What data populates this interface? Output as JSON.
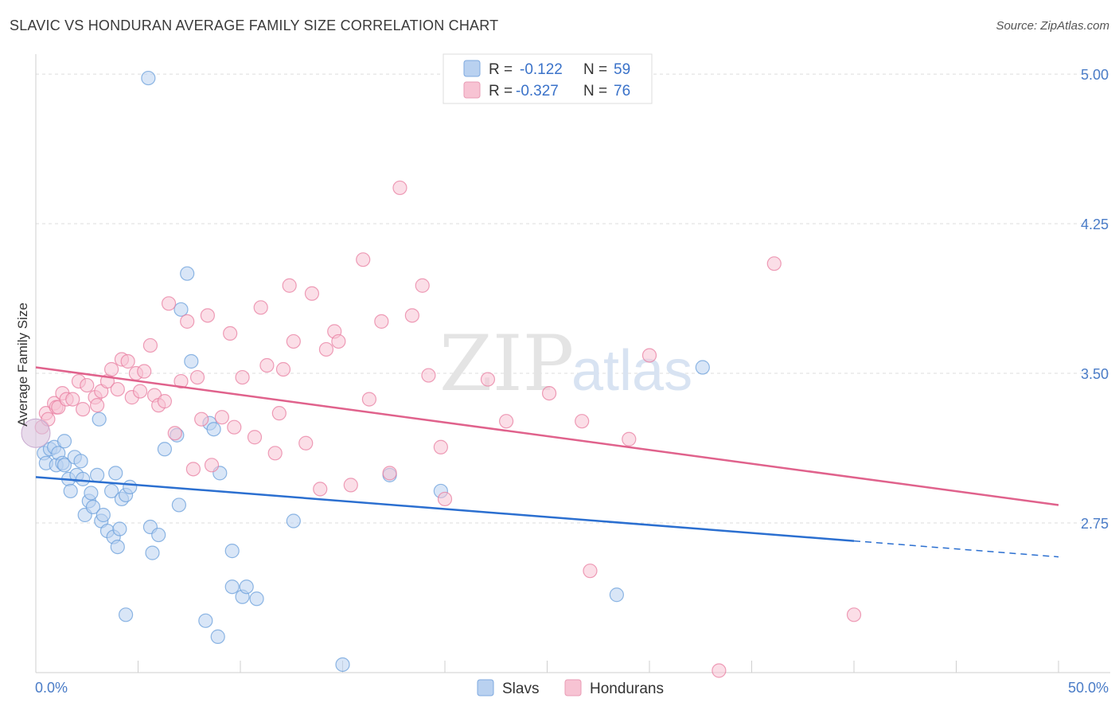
{
  "title": "SLAVIC VS HONDURAN AVERAGE FAMILY SIZE CORRELATION CHART",
  "source": "Source: ZipAtlas.com",
  "watermark": {
    "part1": "ZIP",
    "part2": "atlas"
  },
  "chart_data": {
    "type": "scatter",
    "ylabel": "Average Family Size",
    "xlim": [
      0,
      50
    ],
    "ylim": [
      2.0,
      5.1
    ],
    "yticks": [
      {
        "value": 5.0,
        "label": "5.00"
      },
      {
        "value": 4.25,
        "label": "4.25"
      },
      {
        "value": 3.5,
        "label": "3.50"
      },
      {
        "value": 2.75,
        "label": "2.75"
      }
    ],
    "x_edge_labels": {
      "left": "0.0%",
      "right": "50.0%"
    },
    "legend_stats": [
      {
        "r_label": "R =",
        "r_value": "-0.122",
        "n_label": "N =",
        "n_value": "59"
      },
      {
        "r_label": "R =",
        "r_value": "-0.327",
        "n_label": "N =",
        "n_value": "76"
      }
    ],
    "series": [
      {
        "name": "Slavs",
        "color": "#6a9fdb",
        "fill": "#b9d1f0",
        "trend": {
          "x0": 0,
          "y0": 2.98,
          "x1": 40,
          "y1": 2.66,
          "dash_x1": 50,
          "dash_y1": 2.58
        },
        "points": [
          [
            5.5,
            4.98
          ],
          [
            0.4,
            3.1
          ],
          [
            0.5,
            3.05
          ],
          [
            0.7,
            3.12
          ],
          [
            0.9,
            3.13
          ],
          [
            1.0,
            3.04
          ],
          [
            1.1,
            3.1
          ],
          [
            1.3,
            3.05
          ],
          [
            1.4,
            3.04
          ],
          [
            1.6,
            2.97
          ],
          [
            1.7,
            2.91
          ],
          [
            1.9,
            3.08
          ],
          [
            2.0,
            2.99
          ],
          [
            2.2,
            3.06
          ],
          [
            2.3,
            2.97
          ],
          [
            2.6,
            2.86
          ],
          [
            2.7,
            2.9
          ],
          [
            2.4,
            2.79
          ],
          [
            2.8,
            2.83
          ],
          [
            3.0,
            2.99
          ],
          [
            3.2,
            2.76
          ],
          [
            3.3,
            2.79
          ],
          [
            3.5,
            2.71
          ],
          [
            3.7,
            2.91
          ],
          [
            3.8,
            2.68
          ],
          [
            3.9,
            3.0
          ],
          [
            4.0,
            2.63
          ],
          [
            4.1,
            2.72
          ],
          [
            4.2,
            2.87
          ],
          [
            4.4,
            2.89
          ],
          [
            4.6,
            2.93
          ],
          [
            5.6,
            2.73
          ],
          [
            5.7,
            2.6
          ],
          [
            6.3,
            3.12
          ],
          [
            6.9,
            3.19
          ],
          [
            7.0,
            2.84
          ],
          [
            7.1,
            3.82
          ],
          [
            7.4,
            4.0
          ],
          [
            7.6,
            3.56
          ],
          [
            8.3,
            2.26
          ],
          [
            8.5,
            3.25
          ],
          [
            8.7,
            3.22
          ],
          [
            9.0,
            3.0
          ],
          [
            9.6,
            2.61
          ],
          [
            9.6,
            2.43
          ],
          [
            10.1,
            2.38
          ],
          [
            10.3,
            2.43
          ],
          [
            10.8,
            2.37
          ],
          [
            12.6,
            2.76
          ],
          [
            15.0,
            2.04
          ],
          [
            17.3,
            2.99
          ],
          [
            19.8,
            2.91
          ],
          [
            28.4,
            2.39
          ],
          [
            32.6,
            3.53
          ],
          [
            4.4,
            2.29
          ],
          [
            1.4,
            3.16
          ],
          [
            6.0,
            2.69
          ],
          [
            8.9,
            2.18
          ],
          [
            3.1,
            3.27
          ]
        ]
      },
      {
        "name": "Hondurans",
        "color": "#e87ea0",
        "fill": "#f7c3d3",
        "trend": {
          "x0": 0,
          "y0": 3.53,
          "x1": 50,
          "y1": 2.84
        },
        "points": [
          [
            0.3,
            3.23
          ],
          [
            0.5,
            3.3
          ],
          [
            0.6,
            3.27
          ],
          [
            0.9,
            3.35
          ],
          [
            1.0,
            3.33
          ],
          [
            1.1,
            3.33
          ],
          [
            1.3,
            3.4
          ],
          [
            1.5,
            3.37
          ],
          [
            1.8,
            3.37
          ],
          [
            2.1,
            3.46
          ],
          [
            2.3,
            3.32
          ],
          [
            2.5,
            3.44
          ],
          [
            2.9,
            3.38
          ],
          [
            3.0,
            3.34
          ],
          [
            3.2,
            3.41
          ],
          [
            3.5,
            3.46
          ],
          [
            3.7,
            3.52
          ],
          [
            4.0,
            3.42
          ],
          [
            4.2,
            3.57
          ],
          [
            4.5,
            3.56
          ],
          [
            4.7,
            3.38
          ],
          [
            4.9,
            3.5
          ],
          [
            5.1,
            3.41
          ],
          [
            5.3,
            3.51
          ],
          [
            5.6,
            3.64
          ],
          [
            5.8,
            3.39
          ],
          [
            6.0,
            3.34
          ],
          [
            6.3,
            3.36
          ],
          [
            6.5,
            3.85
          ],
          [
            6.8,
            3.2
          ],
          [
            7.1,
            3.46
          ],
          [
            7.4,
            3.76
          ],
          [
            7.7,
            3.02
          ],
          [
            7.9,
            3.48
          ],
          [
            8.1,
            3.27
          ],
          [
            8.4,
            3.79
          ],
          [
            8.6,
            3.04
          ],
          [
            9.1,
            3.28
          ],
          [
            9.5,
            3.7
          ],
          [
            9.7,
            3.23
          ],
          [
            10.1,
            3.48
          ],
          [
            10.7,
            3.18
          ],
          [
            11.0,
            3.83
          ],
          [
            11.3,
            3.54
          ],
          [
            11.7,
            3.1
          ],
          [
            11.9,
            3.3
          ],
          [
            12.1,
            3.52
          ],
          [
            12.4,
            3.94
          ],
          [
            12.6,
            3.66
          ],
          [
            13.2,
            3.15
          ],
          [
            13.5,
            3.9
          ],
          [
            13.9,
            2.92
          ],
          [
            14.2,
            3.62
          ],
          [
            14.6,
            3.71
          ],
          [
            14.8,
            3.66
          ],
          [
            15.4,
            2.94
          ],
          [
            16.0,
            4.07
          ],
          [
            16.3,
            3.37
          ],
          [
            16.9,
            3.76
          ],
          [
            17.3,
            3.0
          ],
          [
            17.8,
            4.43
          ],
          [
            18.4,
            3.79
          ],
          [
            18.9,
            3.94
          ],
          [
            19.2,
            3.49
          ],
          [
            19.8,
            3.13
          ],
          [
            20.0,
            2.87
          ],
          [
            22.1,
            3.47
          ],
          [
            23.0,
            3.26
          ],
          [
            25.1,
            3.4
          ],
          [
            26.7,
            3.26
          ],
          [
            27.1,
            2.51
          ],
          [
            29.0,
            3.17
          ],
          [
            30.0,
            3.59
          ],
          [
            36.1,
            4.05
          ],
          [
            40.0,
            2.29
          ],
          [
            33.4,
            2.01
          ]
        ]
      }
    ]
  }
}
